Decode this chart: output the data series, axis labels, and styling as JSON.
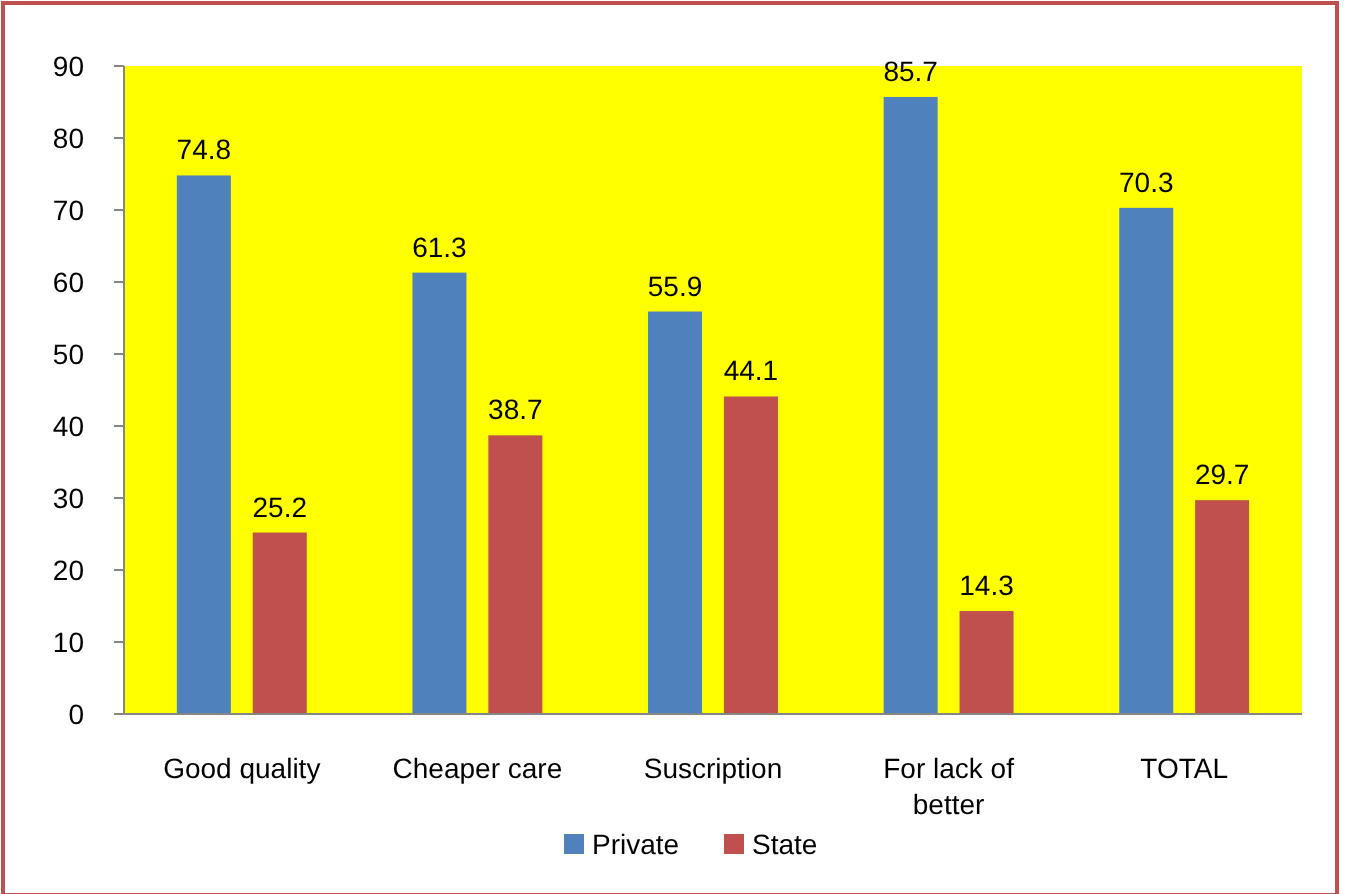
{
  "chart_data": {
    "type": "bar",
    "categories": [
      "Good quality",
      "Cheaper care",
      "Suscription",
      "For lack of better",
      "TOTAL"
    ],
    "series": [
      {
        "name": "Private",
        "color": "#4f81bd",
        "values": [
          74.8,
          61.3,
          55.9,
          85.7,
          70.3
        ]
      },
      {
        "name": "State",
        "color": "#c0504d",
        "values": [
          25.2,
          38.7,
          44.1,
          14.3,
          29.7
        ]
      }
    ],
    "ylim": [
      0,
      90
    ],
    "yticks": [
      0,
      10,
      20,
      30,
      40,
      50,
      60,
      70,
      80,
      90
    ],
    "data_labels": true,
    "legend": "bottom",
    "grid": false
  }
}
